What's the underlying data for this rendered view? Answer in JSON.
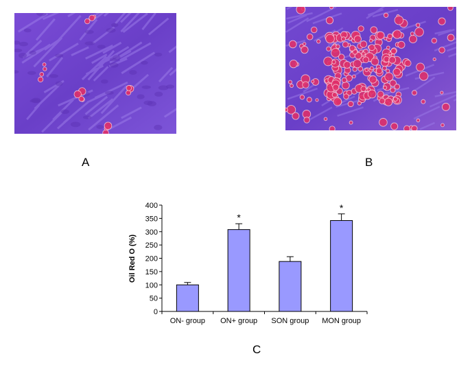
{
  "panels": {
    "a_label": "A",
    "b_label": "B",
    "c_label": "C"
  },
  "micrographs": {
    "stain_background": "#6a3fc8",
    "stain_droplet": "#e0306a",
    "droplet_rim": "#f6c8d8"
  },
  "chart_data": {
    "type": "bar",
    "categories": [
      "ON- group",
      "ON+ group",
      "SON group",
      "MON group"
    ],
    "values": [
      100,
      308,
      188,
      342
    ],
    "errors": [
      9,
      22,
      18,
      25
    ],
    "significance": [
      "",
      "*",
      "",
      "*"
    ],
    "ylabel": "Oil Red O (%)",
    "xlabel": "",
    "ylim": [
      0,
      400
    ],
    "yticks": [
      0,
      50,
      100,
      150,
      200,
      250,
      300,
      350,
      400
    ],
    "bar_color": "#9999ff",
    "grid": false,
    "legend": "none"
  }
}
